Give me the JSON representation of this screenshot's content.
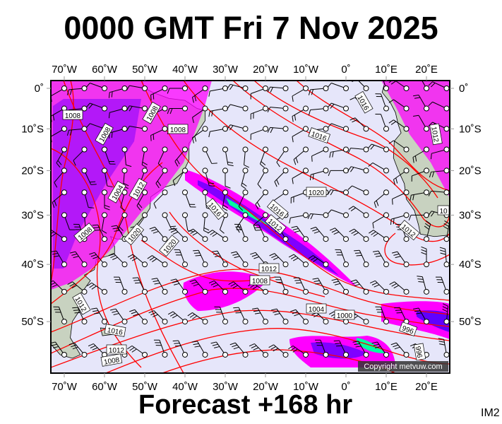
{
  "title": "0000 GMT Fri 7 Nov 2025",
  "subtitle": "Forecast +168 hr",
  "image_code": "IM2",
  "copyright": "Copyright metvuw.com",
  "map": {
    "lon_range": [
      -74,
      26
    ],
    "lat_range": [
      2,
      -60
    ],
    "projection": "mercator",
    "lon_labels": [
      {
        "lon": -70,
        "text": "70˚W"
      },
      {
        "lon": -60,
        "text": "60˚W"
      },
      {
        "lon": -50,
        "text": "50˚W"
      },
      {
        "lon": -40,
        "text": "40˚W"
      },
      {
        "lon": -30,
        "text": "30˚W"
      },
      {
        "lon": -20,
        "text": "20˚W"
      },
      {
        "lon": -10,
        "text": "10˚W"
      },
      {
        "lon": 0,
        "text": "0˚"
      },
      {
        "lon": 10,
        "text": "10˚E"
      },
      {
        "lon": 20,
        "text": "20˚E"
      }
    ],
    "lat_labels": [
      {
        "lat": 0,
        "text": "0˚"
      },
      {
        "lat": -10,
        "text": "10˚S"
      },
      {
        "lat": -20,
        "text": "20˚S"
      },
      {
        "lat": -30,
        "text": "30˚S"
      },
      {
        "lat": -40,
        "text": "40˚S"
      },
      {
        "lat": -50,
        "text": "50˚S"
      }
    ],
    "isobar_labels": [
      "1008",
      "1008",
      "1008",
      "1008",
      "1016",
      "1012",
      "1020",
      "1016",
      "1012",
      "1016",
      "1020",
      "1020",
      "1012",
      "1008",
      "1004",
      "1000",
      "996",
      "996",
      "1012",
      "1016",
      "1008",
      "1012",
      "1004",
      "1008",
      "1012",
      "1016",
      "1012",
      "10"
    ],
    "colors": {
      "ocean": "#e6e6fa",
      "land": "#c8d2c0",
      "isobar": "#ff0000",
      "precip_light": "#ff00ff",
      "precip_mid": "#8000ff",
      "precip_heavy": "#0000ff",
      "precip_max": "#00ff80"
    }
  }
}
